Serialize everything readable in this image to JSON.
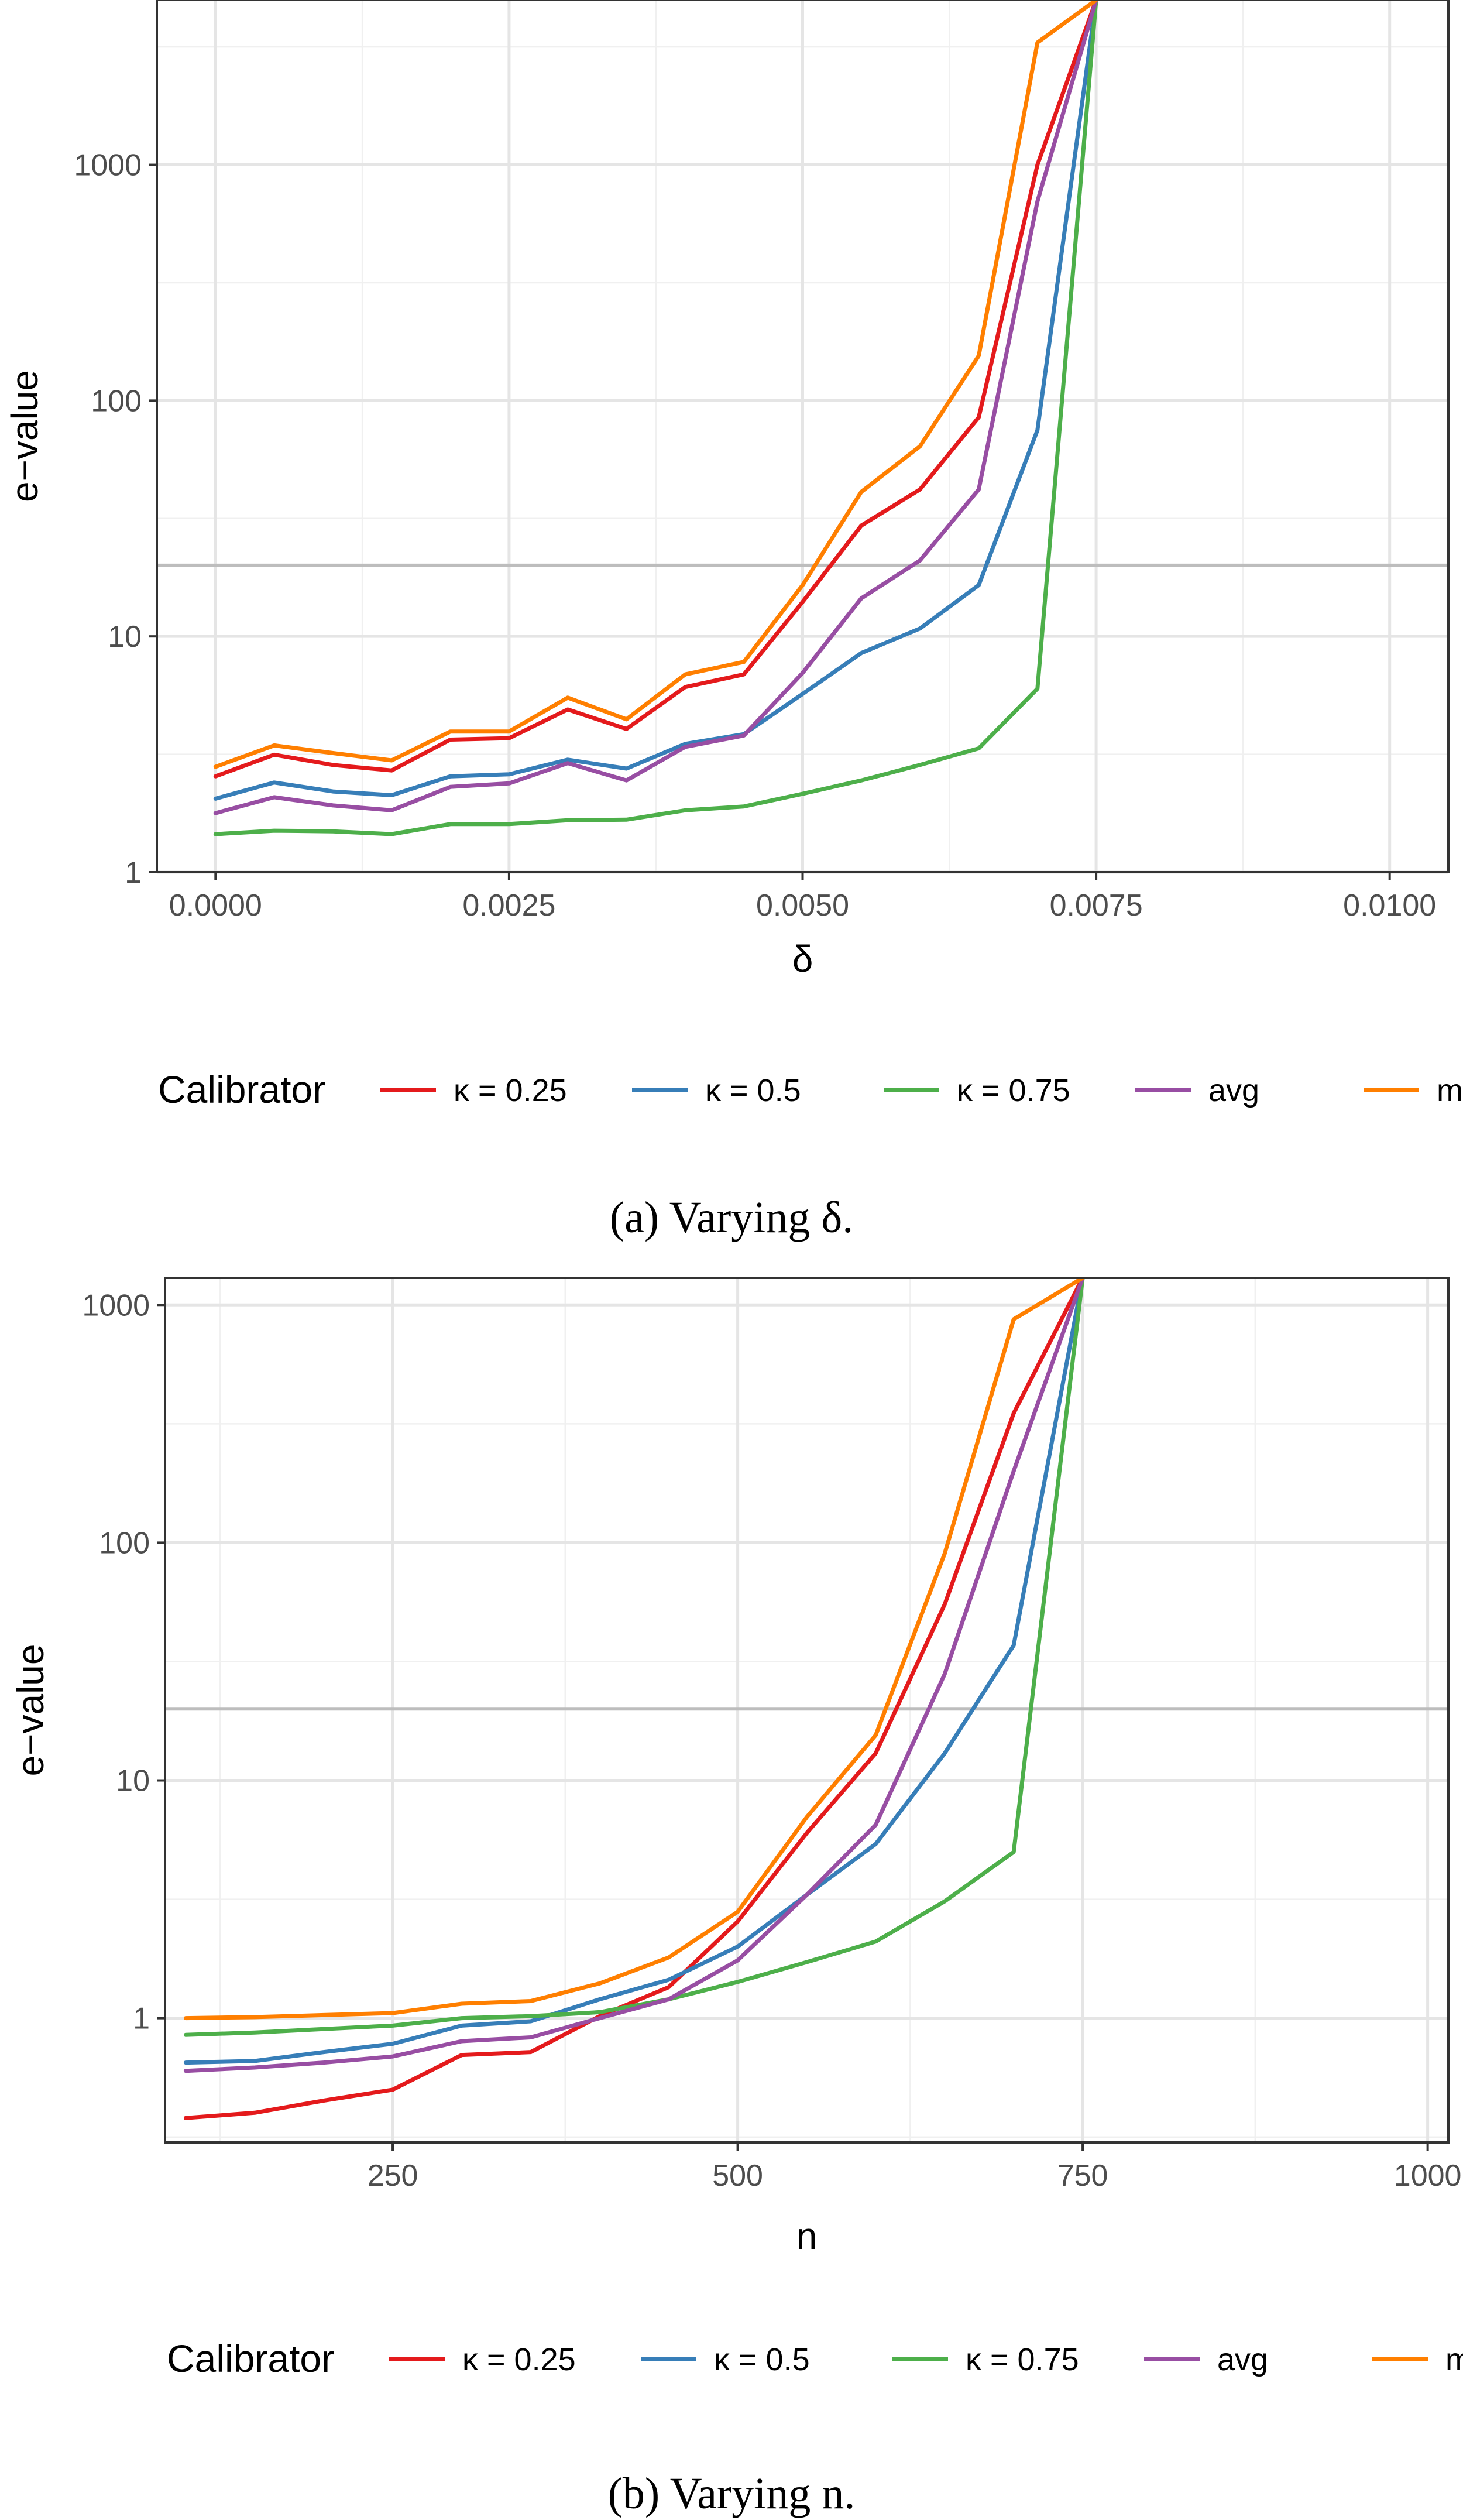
{
  "chart_data": [
    {
      "type": "line",
      "caption": "(a) Varying δ.",
      "xlabel": "δ",
      "ylabel": "e−value",
      "xlim": [
        -0.0005,
        0.0105
      ],
      "ylim_log": [
        1,
        5000
      ],
      "y_scale": "log",
      "xticks": [
        0,
        0.0025,
        0.005,
        0.0075,
        0.01
      ],
      "xtick_labels": [
        "0.0000",
        "0.0025",
        "0.0050",
        "0.0075",
        "0.0100"
      ],
      "yticks": [
        1,
        10,
        100,
        1000
      ],
      "ytick_labels": [
        "1",
        "10",
        "100",
        "1000"
      ],
      "hline": 20,
      "grid": true,
      "legend_title": "Calibrator",
      "legend_position": "bottom",
      "x": [
        0,
        0.0005,
        0.001,
        0.0015,
        0.002,
        0.0025,
        0.003,
        0.0035,
        0.004,
        0.0045,
        0.005,
        0.0055,
        0.006,
        0.0065,
        0.007,
        0.0075
      ],
      "series": [
        {
          "name": "κ = 0.25",
          "color": "#e41a1c",
          "values": [
            2.55,
            3.15,
            2.85,
            2.7,
            3.65,
            3.7,
            4.9,
            4.05,
            6.1,
            6.9,
            14.0,
            29.5,
            42.0,
            85.0,
            1000.0,
            5000.0
          ]
        },
        {
          "name": "κ = 0.5",
          "color": "#377eb8",
          "values": [
            2.05,
            2.4,
            2.2,
            2.12,
            2.55,
            2.6,
            3.0,
            2.75,
            3.5,
            3.85,
            5.7,
            8.5,
            10.8,
            16.5,
            75.0,
            5000.0
          ]
        },
        {
          "name": "κ = 0.75",
          "color": "#4daf4a",
          "values": [
            1.45,
            1.5,
            1.49,
            1.45,
            1.6,
            1.6,
            1.66,
            1.67,
            1.83,
            1.9,
            2.15,
            2.45,
            2.85,
            3.35,
            6.0,
            5000.0
          ]
        },
        {
          "name": "avg",
          "color": "#984ea3",
          "values": [
            1.78,
            2.08,
            1.92,
            1.83,
            2.3,
            2.38,
            2.9,
            2.45,
            3.4,
            3.8,
            7.0,
            14.5,
            21.0,
            42.0,
            700.0,
            5000.0
          ]
        },
        {
          "name": "max",
          "color": "#ff7f00",
          "values": [
            2.8,
            3.45,
            3.2,
            2.98,
            3.95,
            3.95,
            5.5,
            4.45,
            6.9,
            7.8,
            16.5,
            41.0,
            64.0,
            155.0,
            3300.0,
            5000.0
          ]
        }
      ]
    },
    {
      "type": "line",
      "caption": "(b) Varying n.",
      "xlabel": "n",
      "ylabel": "e−value",
      "xlim": [
        85,
        1015
      ],
      "ylim_log": [
        0.3,
        1300
      ],
      "y_scale": "log",
      "xticks": [
        250,
        500,
        750,
        1000
      ],
      "xtick_labels": [
        "250",
        "500",
        "750",
        "1000"
      ],
      "yticks": [
        1,
        10,
        100,
        1000
      ],
      "ytick_labels": [
        "1",
        "10",
        "100",
        "1000"
      ],
      "hline": 20,
      "grid": true,
      "legend_title": "Calibrator",
      "legend_position": "bottom",
      "x": [
        100,
        150,
        200,
        250,
        300,
        350,
        400,
        450,
        500,
        550,
        600,
        650,
        700,
        750
      ],
      "series": [
        {
          "name": "κ = 0.25",
          "color": "#e41a1c",
          "values": [
            0.38,
            0.4,
            0.45,
            0.5,
            0.7,
            0.72,
            1.02,
            1.35,
            2.55,
            6.0,
            13.0,
            55.0,
            350.0,
            1300.0
          ]
        },
        {
          "name": "κ = 0.5",
          "color": "#377eb8",
          "values": [
            0.65,
            0.66,
            0.72,
            0.78,
            0.93,
            0.97,
            1.2,
            1.45,
            2.0,
            3.3,
            5.4,
            13.0,
            37.0,
            1300.0
          ]
        },
        {
          "name": "κ = 0.75",
          "color": "#4daf4a",
          "values": [
            0.85,
            0.87,
            0.9,
            0.93,
            1.0,
            1.02,
            1.06,
            1.2,
            1.42,
            1.72,
            2.1,
            3.1,
            5.0,
            1300.0
          ]
        },
        {
          "name": "avg",
          "color": "#984ea3",
          "values": [
            0.6,
            0.62,
            0.65,
            0.69,
            0.8,
            0.83,
            1.0,
            1.2,
            1.75,
            3.3,
            6.5,
            28.0,
            200.0,
            1300.0
          ]
        },
        {
          "name": "max",
          "color": "#ff7f00",
          "values": [
            1.0,
            1.01,
            1.03,
            1.05,
            1.15,
            1.18,
            1.4,
            1.8,
            2.8,
            7.0,
            15.5,
            90.0,
            870.0,
            1300.0
          ]
        }
      ]
    }
  ]
}
